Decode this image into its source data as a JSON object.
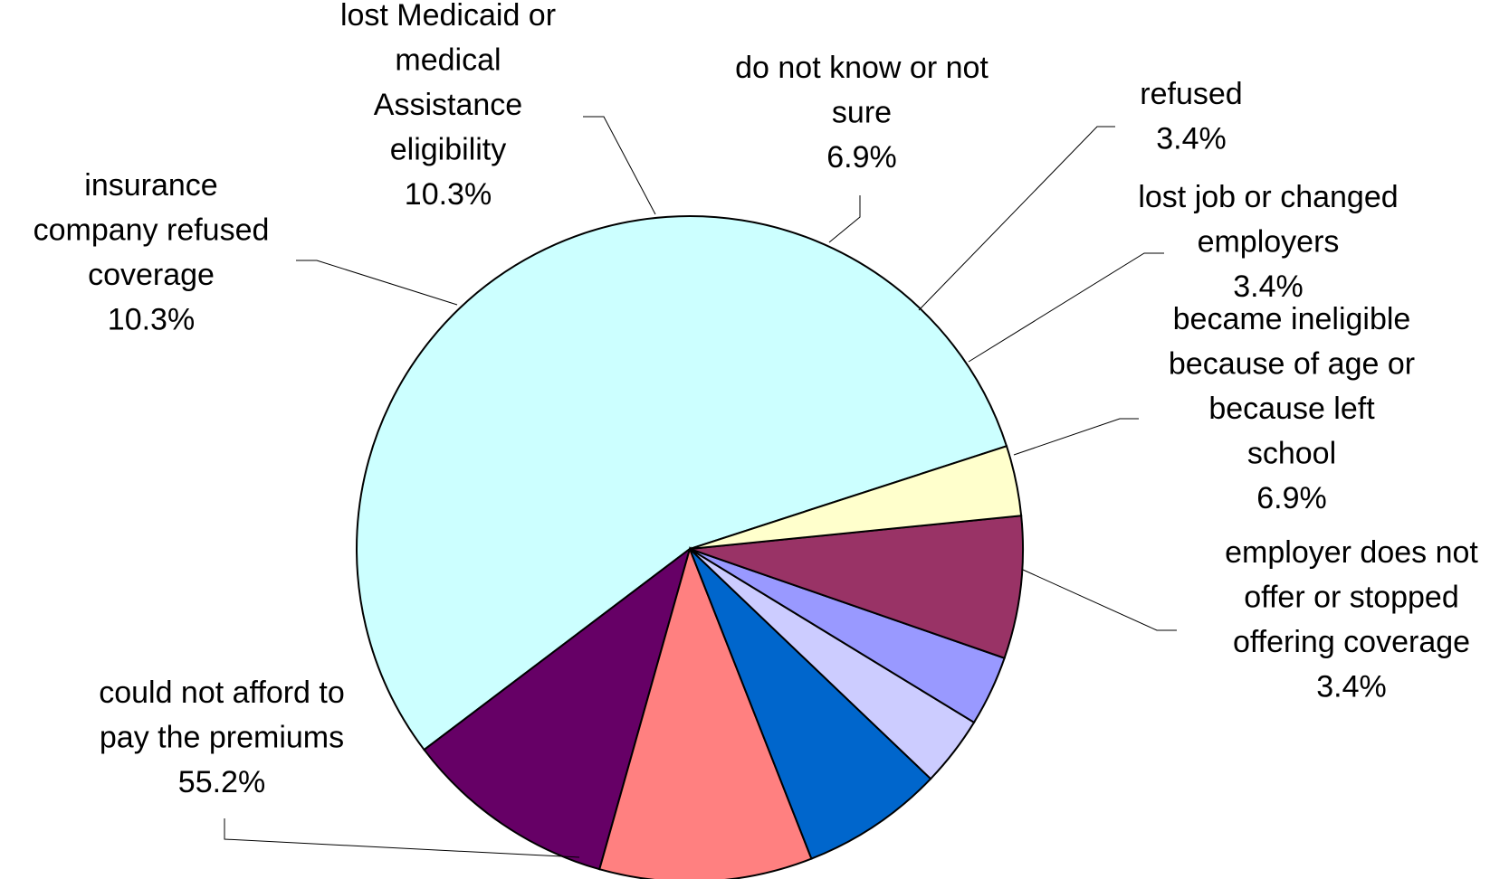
{
  "chart_data": {
    "type": "pie",
    "title": "",
    "start_angle_deg": 18,
    "direction": "counterclockwise",
    "slices": [
      {
        "label": "could not afford to pay the premiums",
        "value": 55.2,
        "value_label": "55.2%",
        "color": "#ccffff"
      },
      {
        "label": "insurance company refused coverage",
        "value": 10.3,
        "value_label": "10.3%",
        "color": "#660066"
      },
      {
        "label": "lost Medicaid or medical Assistance eligibility",
        "value": 10.3,
        "value_label": "10.3%",
        "color": "#ff8080"
      },
      {
        "label": "do not know or not sure",
        "value": 6.9,
        "value_label": "6.9%",
        "color": "#0066cc"
      },
      {
        "label": "refused",
        "value": 3.4,
        "value_label": "3.4%",
        "color": "#ccccff"
      },
      {
        "label": "lost job or changed employers",
        "value": 3.4,
        "value_label": "3.4%",
        "color": "#9999ff"
      },
      {
        "label": "became ineligible because of age or because left school",
        "value": 6.9,
        "value_label": "6.9%",
        "color": "#993366"
      },
      {
        "label": "employer does not offer or stopped offering coverage",
        "value": 3.4,
        "value_label": "3.4%",
        "color": "#ffffcc"
      }
    ]
  }
}
